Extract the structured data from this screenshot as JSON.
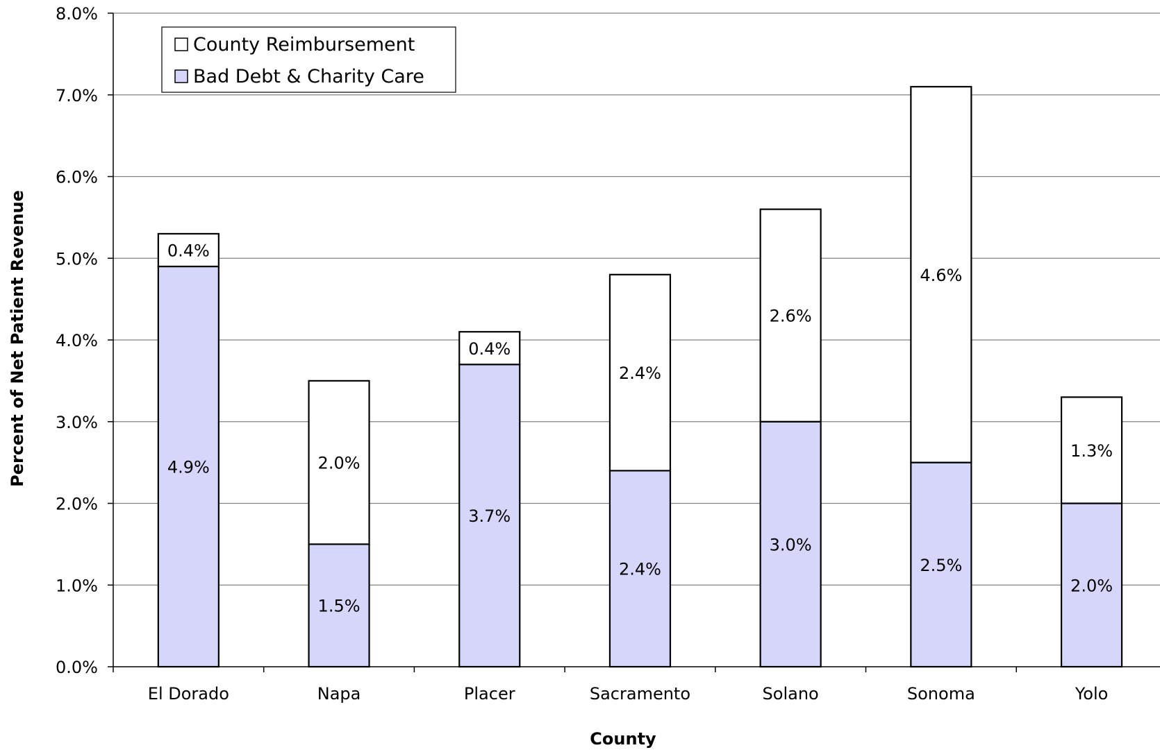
{
  "chart_data": {
    "type": "bar",
    "stacked": true,
    "categories": [
      "El Dorado",
      "Napa",
      "Placer",
      "Sacramento",
      "Solano",
      "Sonoma",
      "Yolo"
    ],
    "series": [
      {
        "name": "Bad Debt & Charity Care",
        "values": [
          4.9,
          1.5,
          3.7,
          2.4,
          3.0,
          2.5,
          2.0
        ],
        "labels": [
          "4.9%",
          "1.5%",
          "3.7%",
          "2.4%",
          "3.0%",
          "2.5%",
          "2.0%"
        ],
        "color": "#d6d6fb"
      },
      {
        "name": "County Reimbursement",
        "values": [
          0.4,
          2.0,
          0.4,
          2.4,
          2.6,
          4.6,
          1.3
        ],
        "labels": [
          "0.4%",
          "2.0%",
          "0.4%",
          "2.4%",
          "2.6%",
          "4.6%",
          "1.3%"
        ],
        "color": "#ffffff"
      }
    ],
    "ylim": [
      0,
      8
    ],
    "yticks": [
      0,
      1,
      2,
      3,
      4,
      5,
      6,
      7,
      8
    ],
    "ytick_labels": [
      "0.0%",
      "1.0%",
      "2.0%",
      "3.0%",
      "4.0%",
      "5.0%",
      "6.0%",
      "7.0%",
      "8.0%"
    ],
    "xlabel": "County",
    "ylabel": "Percent of Net Patient Revenue",
    "legend": {
      "placement": "top-left",
      "entries": [
        "County Reimbursement",
        "Bad Debt & Charity Care"
      ]
    },
    "grid": true,
    "gridline_color": "#808080",
    "bar_edge_color": "#000000"
  }
}
